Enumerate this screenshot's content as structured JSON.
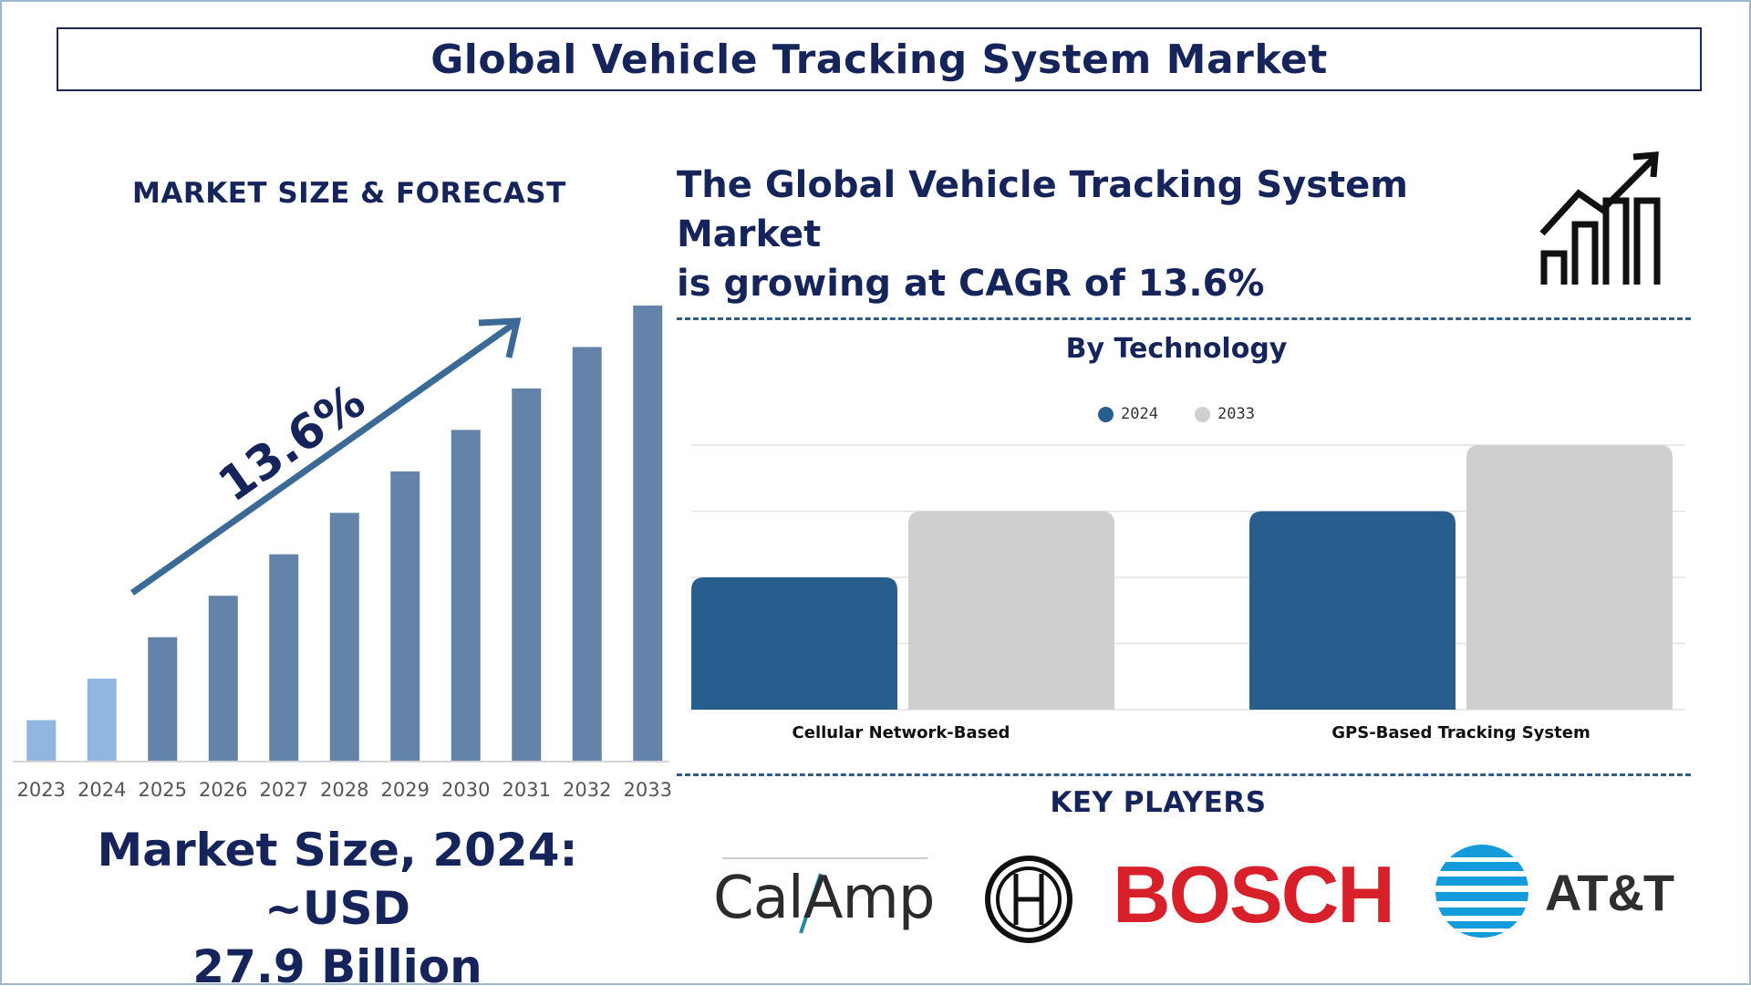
{
  "title": "Global Vehicle Tracking System Market",
  "market_heading": "MARKET SIZE & FORECAST",
  "cagr_statement_line1": "The Global Vehicle Tracking System Market",
  "cagr_statement_line2": "is growing at CAGR of 13.6%",
  "growth_label": "13.6%",
  "market_size_line1": "Market Size, 2024: ~USD",
  "market_size_line2": "27.9 Billion",
  "key_players_title": "KEY PLAYERS",
  "key_players": [
    "CalAmp",
    "BOSCH",
    "AT&T"
  ],
  "colors": {
    "title_navy": "#15245a",
    "bar_forecast": "#6384a8",
    "bar_actual": "#8fb7e0",
    "tech_2024": "#285e8e",
    "tech_2033": "#cfcfcf",
    "bosch_red": "#d8202a",
    "att_blue": "#149bdb"
  },
  "icons": [
    "growth-chart-icon",
    "bosch-emblem-icon",
    "att-globe-icon"
  ],
  "chart_data": [
    {
      "type": "bar",
      "title": "MARKET SIZE & FORECAST",
      "categories": [
        "2023",
        "2024",
        "2025",
        "2026",
        "2027",
        "2028",
        "2029",
        "2030",
        "2031",
        "2032",
        "2033"
      ],
      "values": [
        1,
        2,
        3,
        4,
        5,
        6,
        7,
        8,
        9,
        10,
        11
      ],
      "highlight_categories": [
        "2023",
        "2024"
      ],
      "grid": false
    },
    {
      "type": "bar",
      "title": "By Technology",
      "categories": [
        "Cellular Network-Based",
        "GPS-Based Tracking System"
      ],
      "series": [
        {
          "name": "2024",
          "values": [
            2,
            3
          ]
        },
        {
          "name": "2033",
          "values": [
            3,
            4
          ]
        }
      ],
      "ylim": [
        0,
        4
      ],
      "grid": true,
      "legend": "top-center"
    }
  ]
}
